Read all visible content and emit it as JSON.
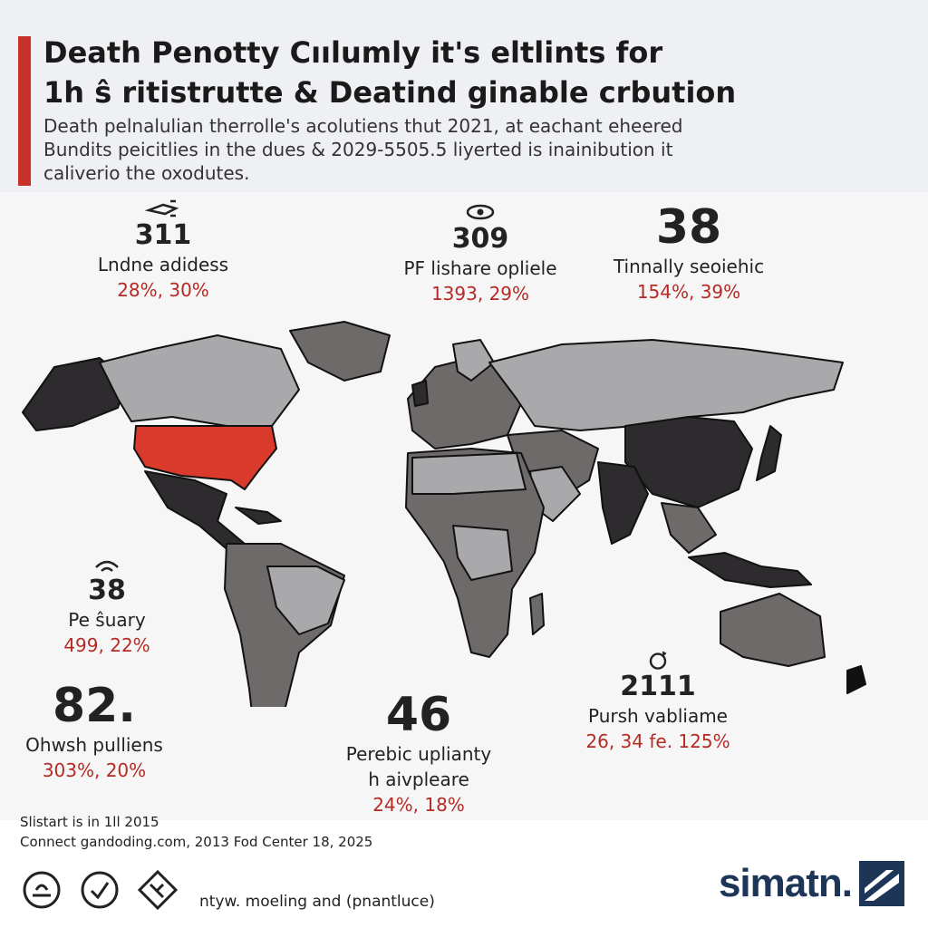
{
  "header": {
    "title_line1": "Death Penotty Cıılumly it's eltlints for",
    "title_line2": "1h ŝ ritistrutte & Deatind ginable crbution",
    "subtitle_line1": "Death pelnalulian therrolle's acolutiens thut 2021, at eachant eheered",
    "subtitle_line2": "Bundits peicitlies in the dues & 2029-5505.5 liyerted is inainibution it",
    "subtitle_line3": "caliverio the oxodutes."
  },
  "stats": [
    {
      "id": "north-america",
      "number": "311",
      "label": "Lndne adidess",
      "pct": "28%, 30%",
      "icon": "spaceship-icon"
    },
    {
      "id": "europe",
      "number": "309",
      "label": "PF lishare opliele",
      "pct": "1393, 29%",
      "icon": "eye-icon"
    },
    {
      "id": "asia",
      "number": "38",
      "label": "Tinnally seoiehic",
      "pct": "154%, 39%",
      "icon": ""
    },
    {
      "id": "south-america",
      "number": "38",
      "label": "Pe ŝuary",
      "pct": "499, 22%",
      "icon": "wifi-icon"
    },
    {
      "id": "latin-america",
      "number": "82.",
      "label": "Ohwsh pulliens",
      "pct": "303%, 20%",
      "icon": ""
    },
    {
      "id": "africa",
      "number": "46",
      "label_line1": "Perebic uplianty",
      "label_line2": "h aivpleare",
      "pct": "24%, 18%",
      "icon": ""
    },
    {
      "id": "oceania",
      "number": "2111",
      "label": "Pursh vabliame",
      "pct": "26, 34 fe. 125%",
      "icon": "refresh-icon"
    }
  ],
  "footer": {
    "source_line1": "Slistart is in 1ll 2015",
    "source_line2": "Connect gandoding.com,  2013 Fod Center 18, 2025",
    "note": "ntyw. moeling and (pnantluce)",
    "brand": "simatn."
  },
  "colors": {
    "accent": "#c8302a",
    "highlight_country": "#d93a2b",
    "map_light": "#a9a9ab",
    "map_mid": "#6f6a6a",
    "map_dark": "#2d2b2d",
    "brand": "#1d3557"
  }
}
